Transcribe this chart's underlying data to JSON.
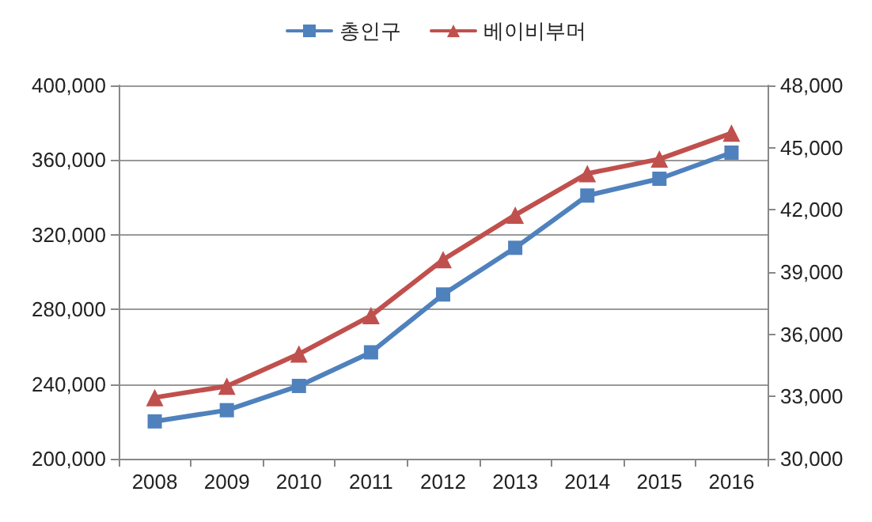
{
  "chart_data": {
    "type": "line",
    "categories": [
      "2008",
      "2009",
      "2010",
      "2011",
      "2012",
      "2013",
      "2014",
      "2015",
      "2016"
    ],
    "series": [
      {
        "name": "총인구",
        "color": "#4f81bd",
        "marker": "square",
        "values": [
          220000,
          226000,
          239000,
          257000,
          288000,
          313000,
          341000,
          350000,
          364000
        ]
      },
      {
        "name": "베이비부머",
        "color": "#c0504d",
        "marker": "triangle",
        "axis": "y2",
        "values": [
          32950,
          33500,
          35050,
          36900,
          39600,
          41750,
          43750,
          44450,
          45700
        ]
      }
    ],
    "ylim": [
      200000,
      400000
    ],
    "yticks": [
      {
        "value": 200000,
        "label": "200,000"
      },
      {
        "value": 240000,
        "label": "240,000"
      },
      {
        "value": 280000,
        "label": "280,000"
      },
      {
        "value": 320000,
        "label": "320,000"
      },
      {
        "value": 360000,
        "label": "360,000"
      },
      {
        "value": 400000,
        "label": "400,000"
      }
    ],
    "y2lim": [
      30000,
      48000
    ],
    "y2ticks": [
      {
        "value": 30000,
        "label": "30,000"
      },
      {
        "value": 33000,
        "label": "33,000"
      },
      {
        "value": 36000,
        "label": "36,000"
      },
      {
        "value": 39000,
        "label": "39,000"
      },
      {
        "value": 42000,
        "label": "42,000"
      },
      {
        "value": 45000,
        "label": "45,000"
      },
      {
        "value": 48000,
        "label": "48,000"
      }
    ],
    "grid": "y",
    "legend": "top",
    "line_style": "solid"
  }
}
